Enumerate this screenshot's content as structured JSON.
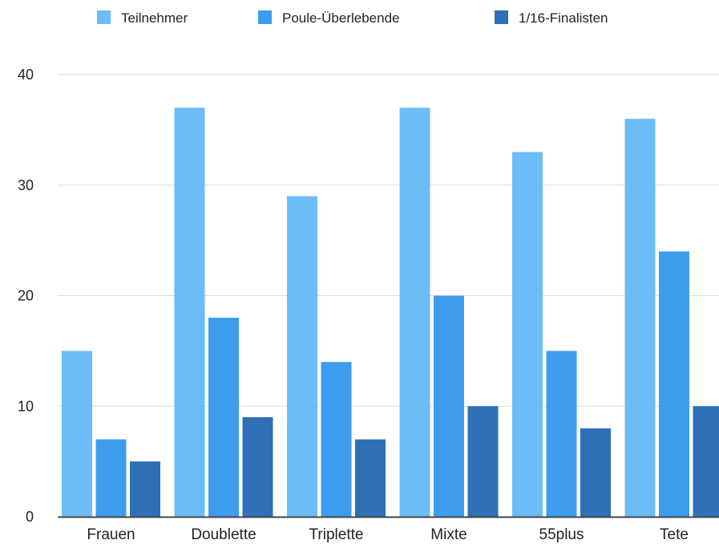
{
  "chart_data": {
    "type": "bar",
    "title": "",
    "xlabel": "",
    "ylabel": "",
    "categories": [
      "Frauen",
      "Doublette",
      "Triplette",
      "Mixte",
      "55plus",
      "Tete"
    ],
    "series": [
      {
        "name": "Teilnehmer",
        "color": "#6cbcf7",
        "values": [
          15,
          37,
          29,
          37,
          33,
          36
        ]
      },
      {
        "name": "Poule-Überlebende",
        "color": "#3d9cee",
        "values": [
          7,
          18,
          14,
          20,
          15,
          24
        ]
      },
      {
        "name": "1/16-Finalisten",
        "color": "#2e6fb5",
        "values": [
          5,
          9,
          7,
          10,
          8,
          10
        ]
      }
    ],
    "ylim": [
      0,
      40
    ],
    "yticks": [
      0,
      10,
      20,
      30,
      40
    ],
    "grid": true,
    "legend_position": "top"
  }
}
